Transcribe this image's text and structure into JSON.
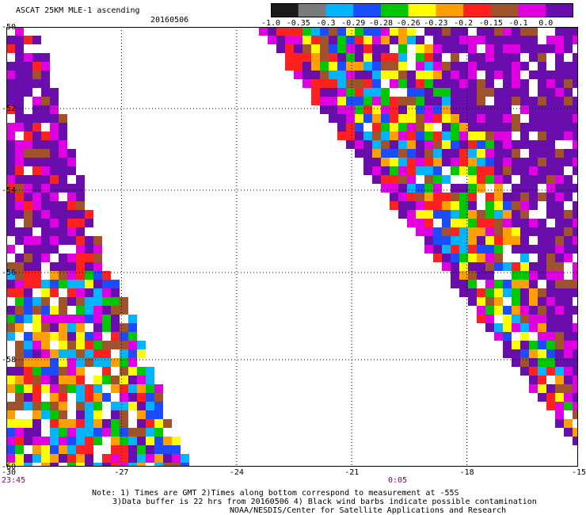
{
  "header": {
    "title": "ASCAT 25KM MLE-1 ascending",
    "date": "20160506"
  },
  "colorbar": {
    "labels": [
      "-1.0",
      "-0.35",
      "-0.3",
      "-0.29",
      "-0.28",
      "-0.26",
      "-0.23",
      "-0.2",
      "-0.15",
      "-0.1",
      "0.0"
    ],
    "colors": [
      "#1a1a1a",
      "#7a7a7a",
      "#00b4ff",
      "#1c4cff",
      "#00c800",
      "#ffff00",
      "#ffa000",
      "#ff2020",
      "#a0522d",
      "#e100e1",
      "#6a0dad"
    ]
  },
  "axes": {
    "x_ticks": [
      "-30",
      "-27",
      "-24",
      "-21",
      "-18",
      "-15"
    ],
    "y_ticks": [
      "-50",
      "-52",
      "-54",
      "-56",
      "-58",
      "-60"
    ]
  },
  "times": {
    "left": "23:45",
    "mid": "0:05"
  },
  "notes": {
    "line1": "Note: 1) Times are GMT 2)Times along bottom correspond to measurement at -55S",
    "line2": "3)Data buffer is 22 hrs from 20160506 4) Black wind barbs indicate possible contamination",
    "line3": "NOAA/NESDIS/Center for Satellite Applications and Research"
  }
}
